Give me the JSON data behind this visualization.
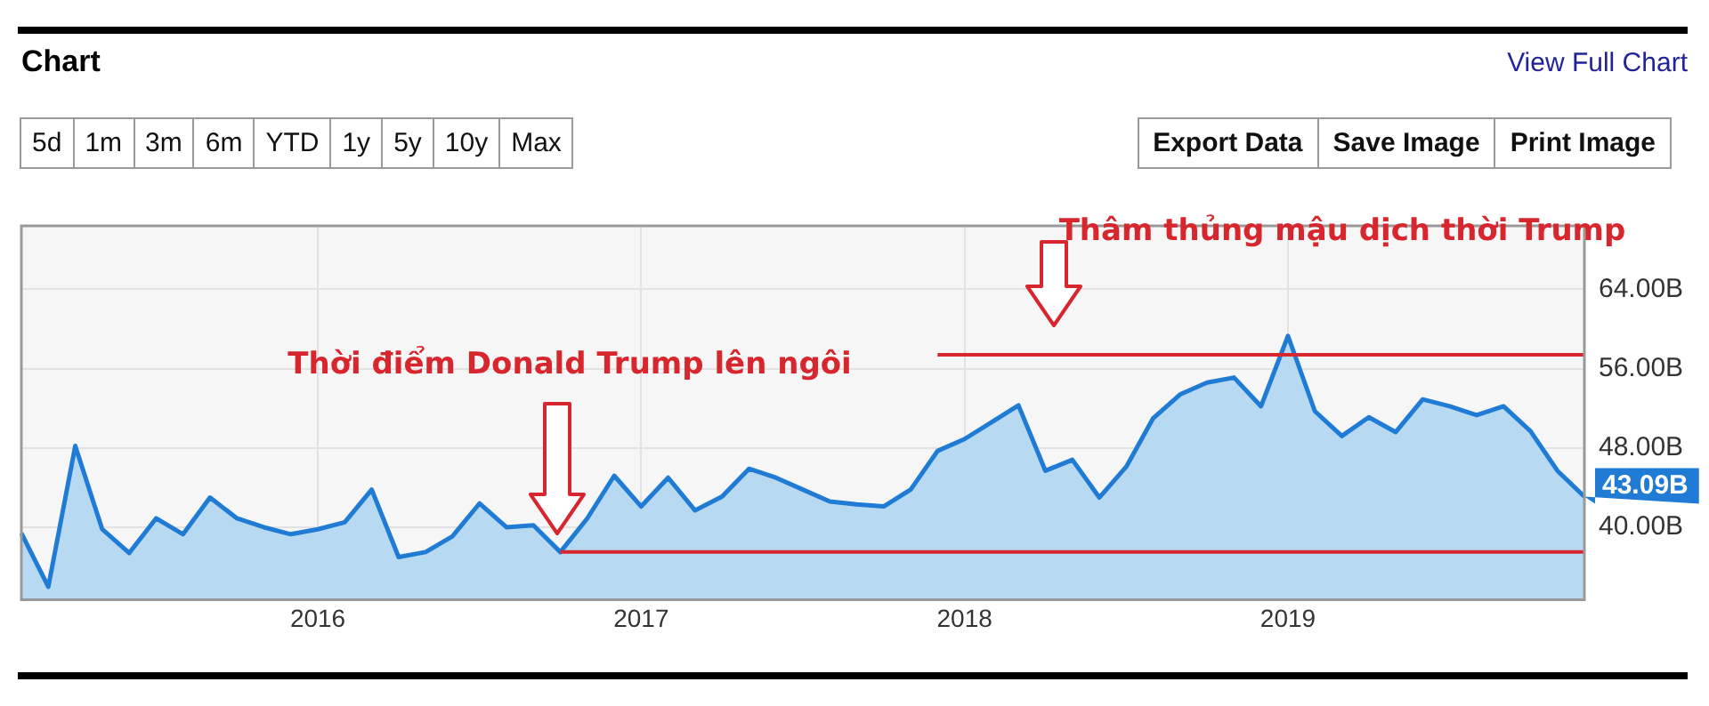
{
  "chart_data": [
    {
      "type": "other",
      "title": "Chart",
      "annotations": [
        "View Full Chart",
        "5d",
        "1m",
        "3m",
        "6m",
        "YTD",
        "1y",
        "5y",
        "10y",
        "Max",
        "Export Data",
        "Save Image",
        "Print Image"
      ]
    },
    {
      "type": "area",
      "x": [
        "2015-02",
        "2015-03",
        "2015-04",
        "2015-05",
        "2015-06",
        "2015-07",
        "2015-08",
        "2015-09",
        "2015-10",
        "2015-11",
        "2015-12",
        "2016-01",
        "2016-02",
        "2016-03",
        "2016-04",
        "2016-05",
        "2016-06",
        "2016-07",
        "2016-08",
        "2016-09",
        "2016-10",
        "2016-11",
        "2016-12",
        "2017-01",
        "2017-02",
        "2017-03",
        "2017-04",
        "2017-05",
        "2017-06",
        "2017-07",
        "2017-08",
        "2017-09",
        "2017-10",
        "2017-11",
        "2017-12",
        "2018-01",
        "2018-02",
        "2018-03",
        "2018-04",
        "2018-05",
        "2018-06",
        "2018-07",
        "2018-08",
        "2018-09",
        "2018-10",
        "2018-11",
        "2018-12",
        "2019-01",
        "2019-02",
        "2019-03",
        "2019-04",
        "2019-05",
        "2019-06",
        "2019-07",
        "2019-08",
        "2019-09",
        "2019-10",
        "2019-11",
        "2019-12"
      ],
      "series": [
        {
          "type": "area",
          "color": "#1f7bd3",
          "values": [
            39.4,
            34.0,
            48.2,
            39.8,
            37.4,
            40.9,
            39.3,
            43.0,
            40.9,
            40.0,
            39.3,
            39.8,
            40.5,
            43.8,
            37.0,
            37.5,
            39.1,
            42.4,
            40.0,
            40.2,
            37.5,
            40.9,
            45.2,
            42.1,
            45.0,
            41.7,
            43.1,
            45.9,
            45.0,
            43.8,
            42.6,
            42.3,
            42.1,
            43.8,
            47.7,
            48.9,
            50.6,
            52.3,
            45.7,
            46.8,
            43.0,
            46.1,
            51.0,
            53.4,
            54.6,
            55.1,
            52.2,
            59.3,
            51.7,
            49.2,
            51.1,
            49.6,
            52.9,
            52.2,
            51.3,
            52.2,
            49.7,
            45.7,
            43.09
          ],
          "value_labels": [
            null,
            null,
            null,
            null,
            null,
            null,
            null,
            null,
            null,
            null,
            null,
            null,
            null,
            null,
            null,
            null,
            null,
            null,
            null,
            null,
            null,
            null,
            null,
            null,
            null,
            null,
            null,
            null,
            null,
            null,
            null,
            null,
            null,
            null,
            null,
            null,
            null,
            null,
            null,
            null,
            null,
            null,
            null,
            null,
            null,
            null,
            null,
            null,
            null,
            null,
            null,
            null,
            null,
            null,
            null,
            null,
            null,
            null,
            "43.09B"
          ]
        },
        {
          "type": "line",
          "color": "#d8262e",
          "x": [
            "2016-10",
            "2019-12"
          ],
          "values": [
            37.5,
            37.5
          ]
        },
        {
          "type": "line",
          "color": "#d8262e",
          "x": [
            "2017-12",
            "2019-12"
          ],
          "values": [
            57.4,
            57.4
          ]
        }
      ],
      "annotations": [
        "Thời điểm Donald Trump lên ngôi",
        "Thâm thủng mậu dịch thời Trump"
      ],
      "xlim": [
        "2015-02",
        "2019-12"
      ],
      "xticks": [
        "2016",
        "2017",
        "2018",
        "2019"
      ],
      "ylim": [
        32.7,
        70.4
      ],
      "yticks": [
        {
          "value": 40,
          "label": "40.00B"
        },
        {
          "value": 48,
          "label": "48.00B"
        },
        {
          "value": 56,
          "label": "56.00B"
        },
        {
          "value": 64,
          "label": "64.00B"
        }
      ],
      "grid": true,
      "legend": false,
      "marker": "none",
      "line_style": "solid"
    }
  ]
}
